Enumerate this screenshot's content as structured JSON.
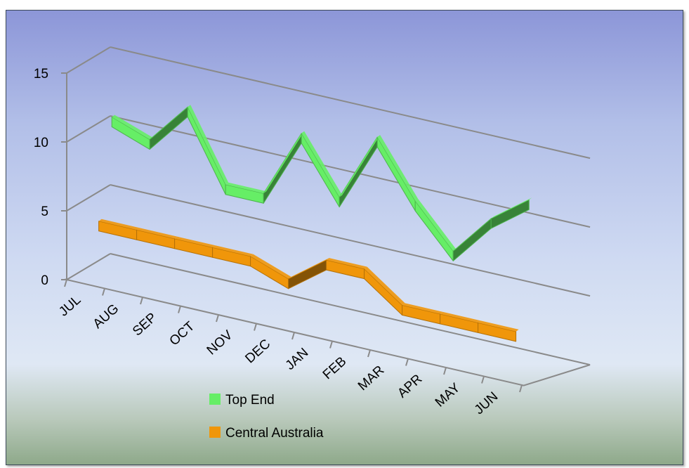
{
  "chart_data": {
    "type": "line",
    "title": "",
    "xlabel": "",
    "ylabel": "",
    "categories": [
      "JUL",
      "AUG",
      "SEP",
      "OCT",
      "NOV",
      "DEC",
      "JAN",
      "FEB",
      "MAR",
      "APR",
      "MAY",
      "JUN"
    ],
    "y_ticks": [
      "0",
      "5",
      "10",
      "15"
    ],
    "ylim": [
      0,
      15
    ],
    "grid": true,
    "legend_position": "bottom-left",
    "series": [
      {
        "name": "Top End",
        "color": "#66ee66",
        "values": [
          11,
          10,
          13,
          8,
          8,
          13,
          9,
          14,
          10,
          7,
          10,
          12
        ]
      },
      {
        "name": "Central Australia",
        "color": "#f0960a",
        "values": [
          4,
          4,
          4,
          4,
          4,
          3,
          5,
          5,
          3,
          3,
          3,
          3
        ]
      }
    ]
  }
}
